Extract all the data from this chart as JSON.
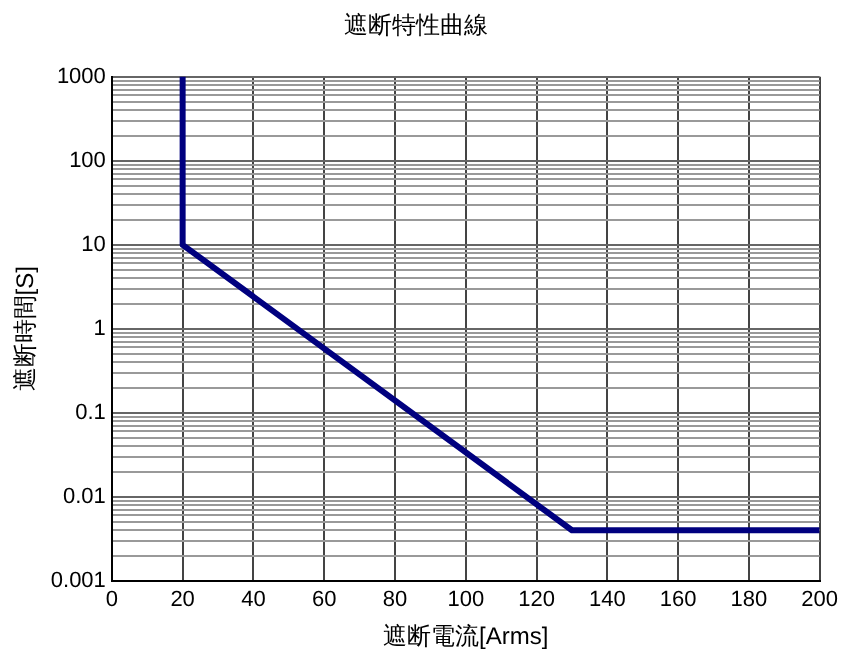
{
  "chart_data": {
    "type": "line",
    "title": "遮断特性曲線",
    "xlabel": "遮断電流[Arms]",
    "ylabel": "遮断時間[S]",
    "series": [
      {
        "color": "#00007f",
        "x": [
          20,
          20,
          130,
          200
        ],
        "values": [
          1000,
          10,
          0.004,
          0.004
        ]
      }
    ],
    "xlim": [
      0,
      200
    ],
    "xticks": [
      0,
      20,
      40,
      60,
      80,
      100,
      120,
      140,
      160,
      180,
      200
    ],
    "ylim": [
      0.001,
      1000
    ],
    "log": "y",
    "yticks": [
      {
        "value": 0.001,
        "label": "0.001"
      },
      {
        "value": 0.002,
        "label": null
      },
      {
        "value": 0.003,
        "label": null
      },
      {
        "value": 0.004,
        "label": null
      },
      {
        "value": 0.005,
        "label": null
      },
      {
        "value": 0.006,
        "label": null
      },
      {
        "value": 0.007,
        "label": null
      },
      {
        "value": 0.008,
        "label": null
      },
      {
        "value": 0.009,
        "label": null
      },
      {
        "value": 0.01,
        "label": "0.01"
      },
      {
        "value": 0.02,
        "label": null
      },
      {
        "value": 0.03,
        "label": null
      },
      {
        "value": 0.04,
        "label": null
      },
      {
        "value": 0.05,
        "label": null
      },
      {
        "value": 0.06,
        "label": null
      },
      {
        "value": 0.07,
        "label": null
      },
      {
        "value": 0.08,
        "label": null
      },
      {
        "value": 0.09,
        "label": null
      },
      {
        "value": 0.1,
        "label": "0.1"
      },
      {
        "value": 0.2,
        "label": null
      },
      {
        "value": 0.3,
        "label": null
      },
      {
        "value": 0.4,
        "label": null
      },
      {
        "value": 0.5,
        "label": null
      },
      {
        "value": 0.6,
        "label": null
      },
      {
        "value": 0.7,
        "label": null
      },
      {
        "value": 0.8,
        "label": null
      },
      {
        "value": 0.9,
        "label": null
      },
      1,
      {
        "value": 2,
        "label": null
      },
      {
        "value": 3,
        "label": null
      },
      {
        "value": 4,
        "label": null
      },
      {
        "value": 5,
        "label": null
      },
      {
        "value": 6,
        "label": null
      },
      {
        "value": 7,
        "label": null
      },
      {
        "value": 8,
        "label": null
      },
      {
        "value": 9,
        "label": null
      },
      10,
      {
        "value": 20,
        "label": null
      },
      {
        "value": 30,
        "label": null
      },
      {
        "value": 40,
        "label": null
      },
      {
        "value": 50,
        "label": null
      },
      {
        "value": 60,
        "label": null
      },
      {
        "value": 70,
        "label": null
      },
      {
        "value": 80,
        "label": null
      },
      {
        "value": 90,
        "label": null
      },
      100,
      {
        "value": 200,
        "label": null
      },
      {
        "value": 300,
        "label": null
      },
      {
        "value": 400,
        "label": null
      },
      {
        "value": 500,
        "label": null
      },
      {
        "value": 600,
        "label": null
      },
      {
        "value": 700,
        "label": null
      },
      {
        "value": 800,
        "label": null
      },
      {
        "value": 900,
        "label": null
      },
      1000
    ],
    "grid": true,
    "legend": false,
    "marker": "none",
    "line_style": "solid"
  }
}
